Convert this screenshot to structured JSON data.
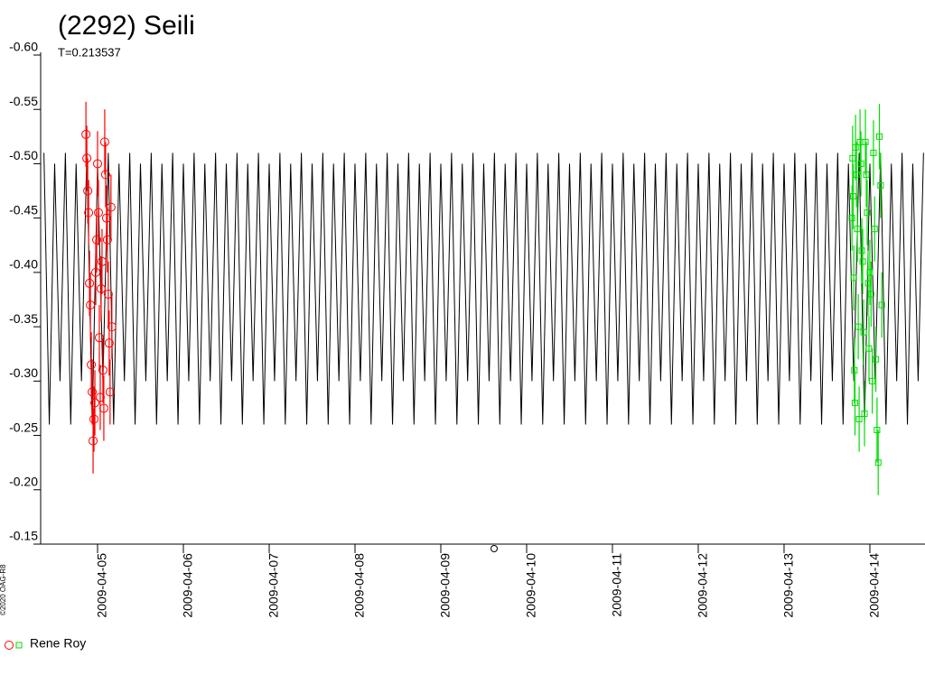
{
  "chart_data": {
    "type": "lightcurve",
    "title": "(2292) Seili",
    "subtitle": "T=0.213537",
    "copyright": "©2020 OAG-R8",
    "legend_label": "Rene Roy",
    "xlim": [
      "2009-04-04 08:05",
      "2009-04-14 15:25"
    ],
    "xticks": [
      "2009-04-05",
      "2009-04-06",
      "2009-04-07",
      "2009-04-08",
      "2009-04-09",
      "2009-04-10",
      "2009-04-11",
      "2009-04-12",
      "2009-04-13",
      "2009-04-14"
    ],
    "ylim": [
      -0.15,
      -0.6
    ],
    "yticks": [
      {
        "value": -0.6,
        "label": "-0.60"
      },
      {
        "value": -0.55,
        "label": "-0.55"
      },
      {
        "value": -0.5,
        "label": "-0.50"
      },
      {
        "value": -0.45,
        "label": "-0.45"
      },
      {
        "value": -0.4,
        "label": "-0.40"
      },
      {
        "value": -0.35,
        "label": "-0.35"
      },
      {
        "value": -0.3,
        "label": "-0.30"
      },
      {
        "value": -0.25,
        "label": "-0.25"
      },
      {
        "value": -0.2,
        "label": "-0.20"
      },
      {
        "value": -0.15,
        "label": "-0.15"
      }
    ],
    "model": {
      "color": "#000000",
      "x": [
        "2009-04-04 09:00",
        "2009-04-04 10:30",
        "2009-04-04 12:00",
        "2009-04-04 13:30",
        "2009-04-04 15:00",
        "2009-04-04 16:30",
        "2009-04-04 18:00",
        "2009-04-04 19:30",
        "2009-04-04 21:00",
        "2009-04-04 22:30",
        "2009-04-05 00:00",
        "2009-04-05 01:30",
        "2009-04-05 03:00",
        "2009-04-05 04:30",
        "2009-04-05 06:00",
        "2009-04-05 07:30",
        "2009-04-05 09:00",
        "2009-04-05 10:30",
        "2009-04-05 12:00",
        "2009-04-05 13:30",
        "2009-04-05 15:00",
        "2009-04-05 16:30",
        "2009-04-05 18:00",
        "2009-04-05 19:30",
        "2009-04-05 21:00",
        "2009-04-05 22:30",
        "2009-04-06 00:00",
        "2009-04-06 01:30",
        "2009-04-06 03:00",
        "2009-04-06 04:30",
        "2009-04-06 06:00",
        "2009-04-06 07:30",
        "2009-04-06 09:00",
        "2009-04-06 10:30",
        "2009-04-06 12:00",
        "2009-04-06 13:30",
        "2009-04-06 15:00",
        "2009-04-06 16:30",
        "2009-04-06 18:00",
        "2009-04-06 19:30",
        "2009-04-06 21:00",
        "2009-04-06 22:30",
        "2009-04-07 00:00",
        "2009-04-07 01:30",
        "2009-04-07 03:00",
        "2009-04-07 04:30",
        "2009-04-07 06:00",
        "2009-04-07 07:30",
        "2009-04-07 09:00",
        "2009-04-07 10:30",
        "2009-04-07 12:00",
        "2009-04-07 13:30",
        "2009-04-07 15:00",
        "2009-04-07 16:30",
        "2009-04-07 18:00",
        "2009-04-07 19:30",
        "2009-04-07 21:00",
        "2009-04-07 22:30",
        "2009-04-08 00:00",
        "2009-04-08 01:30",
        "2009-04-08 03:00",
        "2009-04-08 04:30",
        "2009-04-08 06:00",
        "2009-04-08 07:30",
        "2009-04-08 09:00",
        "2009-04-08 10:30",
        "2009-04-08 12:00",
        "2009-04-08 13:30",
        "2009-04-08 15:00",
        "2009-04-08 16:30",
        "2009-04-08 18:00",
        "2009-04-08 19:30",
        "2009-04-08 21:00",
        "2009-04-08 22:30",
        "2009-04-09 00:00",
        "2009-04-09 01:30",
        "2009-04-09 03:00",
        "2009-04-09 04:30",
        "2009-04-09 06:00",
        "2009-04-09 07:30",
        "2009-04-09 09:00",
        "2009-04-09 10:30",
        "2009-04-09 12:00",
        "2009-04-09 13:30",
        "2009-04-09 15:00",
        "2009-04-09 16:30",
        "2009-04-09 18:00",
        "2009-04-09 19:30",
        "2009-04-09 21:00",
        "2009-04-09 22:30",
        "2009-04-10 00:00",
        "2009-04-10 01:30",
        "2009-04-10 03:00",
        "2009-04-10 04:30",
        "2009-04-10 06:00",
        "2009-04-10 07:30",
        "2009-04-10 09:00",
        "2009-04-10 10:30",
        "2009-04-10 12:00",
        "2009-04-10 13:30",
        "2009-04-10 15:00",
        "2009-04-10 16:30",
        "2009-04-10 18:00",
        "2009-04-10 19:30",
        "2009-04-10 21:00",
        "2009-04-10 22:30",
        "2009-04-11 00:00",
        "2009-04-11 01:30",
        "2009-04-11 03:00",
        "2009-04-11 04:30",
        "2009-04-11 06:00",
        "2009-04-11 07:30",
        "2009-04-11 09:00",
        "2009-04-11 10:30",
        "2009-04-11 12:00",
        "2009-04-11 13:30",
        "2009-04-11 15:00",
        "2009-04-11 16:30",
        "2009-04-11 18:00",
        "2009-04-11 19:30",
        "2009-04-11 21:00",
        "2009-04-11 22:30",
        "2009-04-12 00:00",
        "2009-04-12 01:30",
        "2009-04-12 03:00",
        "2009-04-12 04:30",
        "2009-04-12 06:00",
        "2009-04-12 07:30",
        "2009-04-12 09:00",
        "2009-04-12 10:30",
        "2009-04-12 12:00",
        "2009-04-12 13:30",
        "2009-04-12 15:00",
        "2009-04-12 16:30",
        "2009-04-12 18:00",
        "2009-04-12 19:30",
        "2009-04-12 21:00",
        "2009-04-12 22:30",
        "2009-04-13 00:00",
        "2009-04-13 01:30",
        "2009-04-13 03:00",
        "2009-04-13 04:30",
        "2009-04-13 06:00",
        "2009-04-13 07:30",
        "2009-04-13 09:00",
        "2009-04-13 10:30",
        "2009-04-13 12:00",
        "2009-04-13 13:30",
        "2009-04-13 15:00",
        "2009-04-13 16:30",
        "2009-04-13 18:00",
        "2009-04-13 19:30",
        "2009-04-13 21:00",
        "2009-04-13 22:30",
        "2009-04-14 00:00",
        "2009-04-14 01:30",
        "2009-04-14 03:00",
        "2009-04-14 04:30",
        "2009-04-14 06:00",
        "2009-04-14 07:30",
        "2009-04-14 09:00",
        "2009-04-14 10:30",
        "2009-04-14 12:00",
        "2009-04-14 13:30",
        "2009-04-14 15:00"
      ],
      "values": [
        -0.51,
        -0.26,
        -0.5,
        -0.3,
        -0.51,
        -0.26,
        -0.5,
        -0.3,
        -0.51,
        -0.26,
        -0.5,
        -0.3,
        -0.51,
        -0.26,
        -0.5,
        -0.3,
        -0.51,
        -0.26,
        -0.5,
        -0.3,
        -0.51,
        -0.26,
        -0.5,
        -0.3,
        -0.51,
        -0.26,
        -0.5,
        -0.3,
        -0.51,
        -0.26,
        -0.5,
        -0.3,
        -0.51,
        -0.26,
        -0.5,
        -0.3,
        -0.51,
        -0.26,
        -0.5,
        -0.3,
        -0.51,
        -0.26,
        -0.5,
        -0.3,
        -0.51,
        -0.26,
        -0.5,
        -0.3,
        -0.51,
        -0.26,
        -0.5,
        -0.3,
        -0.51,
        -0.26,
        -0.5,
        -0.3,
        -0.51,
        -0.26,
        -0.5,
        -0.3,
        -0.51,
        -0.26,
        -0.5,
        -0.3,
        -0.51,
        -0.26,
        -0.5,
        -0.3,
        -0.51,
        -0.26,
        -0.5,
        -0.3,
        -0.51,
        -0.26,
        -0.5,
        -0.3,
        -0.51,
        -0.26,
        -0.5,
        -0.3,
        -0.51,
        -0.26,
        -0.5,
        -0.3,
        -0.51,
        -0.26,
        -0.5,
        -0.3,
        -0.51,
        -0.26,
        -0.5,
        -0.3,
        -0.51,
        -0.26,
        -0.5,
        -0.3,
        -0.51,
        -0.26,
        -0.5,
        -0.3,
        -0.51,
        -0.26,
        -0.5,
        -0.3,
        -0.51,
        -0.26,
        -0.5,
        -0.3,
        -0.51,
        -0.26,
        -0.5,
        -0.3,
        -0.51,
        -0.26,
        -0.5,
        -0.3,
        -0.51,
        -0.26,
        -0.5,
        -0.3,
        -0.51,
        -0.26,
        -0.5,
        -0.3,
        -0.51,
        -0.26,
        -0.5,
        -0.3,
        -0.51,
        -0.26,
        -0.5,
        -0.3,
        -0.51,
        -0.26,
        -0.5,
        -0.3,
        -0.51,
        -0.26,
        -0.5,
        -0.3,
        -0.51,
        -0.26,
        -0.5,
        -0.3,
        -0.51,
        -0.26,
        -0.5,
        -0.3,
        -0.51,
        -0.26,
        -0.5,
        -0.3,
        -0.51,
        -0.26,
        -0.5,
        -0.3,
        -0.51,
        -0.26,
        -0.5,
        -0.3,
        -0.51,
        -0.26,
        -0.5,
        -0.3,
        -0.51
      ]
    },
    "series": [
      {
        "color": "#ff0000",
        "marker": "circle",
        "x": [
          "2009-04-04 20:45",
          "2009-04-04 21:00",
          "2009-04-04 21:15",
          "2009-04-04 21:30",
          "2009-04-04 21:45",
          "2009-04-04 22:00",
          "2009-04-04 22:15",
          "2009-04-04 22:30",
          "2009-04-04 22:45",
          "2009-04-04 23:00",
          "2009-04-04 23:15",
          "2009-04-04 23:30",
          "2009-04-04 23:45",
          "2009-04-05 00:00",
          "2009-04-05 00:15",
          "2009-04-05 00:30",
          "2009-04-05 00:45",
          "2009-04-05 01:00",
          "2009-04-05 01:15",
          "2009-04-05 01:30",
          "2009-04-05 01:45",
          "2009-04-05 02:00",
          "2009-04-05 02:15",
          "2009-04-05 02:30",
          "2009-04-05 02:45",
          "2009-04-05 03:00",
          "2009-04-05 03:15",
          "2009-04-05 03:30",
          "2009-04-05 03:45",
          "2009-04-05 04:00"
        ],
        "values": [
          -0.527,
          -0.505,
          -0.475,
          -0.455,
          -0.39,
          -0.37,
          -0.315,
          -0.29,
          -0.245,
          -0.265,
          -0.28,
          -0.4,
          -0.43,
          -0.5,
          -0.455,
          -0.34,
          -0.285,
          -0.385,
          -0.41,
          -0.31,
          -0.275,
          -0.52,
          -0.49,
          -0.45,
          -0.43,
          -0.38,
          -0.335,
          -0.29,
          -0.46,
          -0.35
        ],
        "errors": [
          0.03,
          0.03,
          0.03,
          0.03,
          0.03,
          0.03,
          0.03,
          0.03,
          0.03,
          0.03,
          0.03,
          0.03,
          0.03,
          0.03,
          0.03,
          0.03,
          0.03,
          0.03,
          0.03,
          0.03,
          0.03,
          0.03,
          0.03,
          0.03,
          0.03,
          0.03,
          0.03,
          0.03,
          0.03,
          0.03
        ]
      },
      {
        "color": "#00dd00",
        "marker": "square",
        "x": [
          "2009-04-13 19:00",
          "2009-04-13 19:10",
          "2009-04-13 19:20",
          "2009-04-13 19:30",
          "2009-04-13 19:40",
          "2009-04-13 19:50",
          "2009-04-13 20:00",
          "2009-04-13 20:15",
          "2009-04-13 20:30",
          "2009-04-13 20:45",
          "2009-04-13 21:00",
          "2009-04-13 21:15",
          "2009-04-13 21:30",
          "2009-04-13 21:45",
          "2009-04-13 22:00",
          "2009-04-13 22:15",
          "2009-04-13 22:30",
          "2009-04-13 22:45",
          "2009-04-13 23:00",
          "2009-04-13 23:15",
          "2009-04-13 23:30",
          "2009-04-13 23:45",
          "2009-04-14 00:00",
          "2009-04-14 00:20",
          "2009-04-14 00:40",
          "2009-04-14 01:00",
          "2009-04-14 01:20",
          "2009-04-14 01:40",
          "2009-04-14 02:00",
          "2009-04-14 02:20",
          "2009-04-14 02:40",
          "2009-04-14 03:00",
          "2009-04-14 03:20"
        ],
        "values": [
          -0.45,
          -0.505,
          -0.47,
          -0.395,
          -0.31,
          -0.28,
          -0.515,
          -0.49,
          -0.44,
          -0.35,
          -0.265,
          -0.52,
          -0.5,
          -0.42,
          -0.41,
          -0.345,
          -0.27,
          -0.52,
          -0.49,
          -0.455,
          -0.39,
          -0.33,
          -0.4,
          -0.38,
          -0.3,
          -0.51,
          -0.44,
          -0.32,
          -0.255,
          -0.225,
          -0.525,
          -0.48,
          -0.37
        ],
        "errors": [
          0.03,
          0.03,
          0.03,
          0.03,
          0.03,
          0.03,
          0.03,
          0.03,
          0.03,
          0.03,
          0.03,
          0.03,
          0.03,
          0.03,
          0.03,
          0.03,
          0.03,
          0.03,
          0.03,
          0.03,
          0.03,
          0.03,
          0.03,
          0.03,
          0.03,
          0.03,
          0.03,
          0.03,
          0.03,
          0.03,
          0.03,
          0.03,
          0.03
        ]
      }
    ]
  }
}
